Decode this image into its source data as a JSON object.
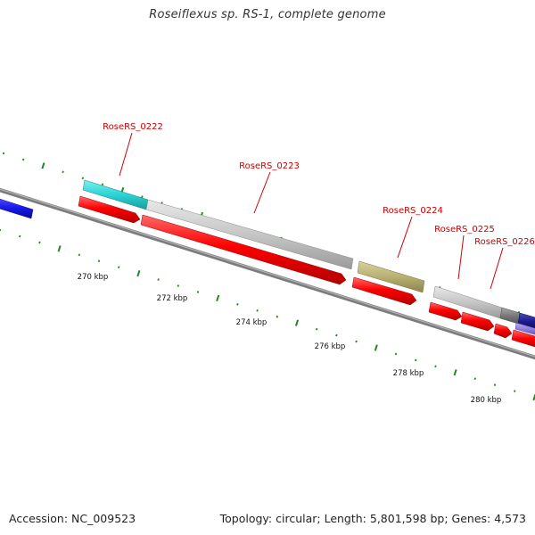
{
  "title": "Roseiflexus sp. RS-1, complete genome",
  "footer": {
    "accession": "Accession: NC_009523",
    "summary": "Topology: circular; Length: 5,801,598 bp; Genes: 4,573"
  },
  "colors": {
    "backbone": "#8c8c8c",
    "tick": "#1f8a1f",
    "gene_label": "#cc0000",
    "cds": "#ff0000",
    "gene_cyan": "#2ad4d4",
    "gene_gray": "#c6c6c6",
    "gene_olive": "#b8b070",
    "gene_blue": "#1a1aee",
    "gene_dark_gray": "#7a7a7a",
    "gene_navy": "#1a1a8c",
    "gene_purple": "#8a78d8"
  },
  "axis": {
    "unit": "kbp",
    "tick_labels": [
      "270 kbp",
      "272 kbp",
      "274 kbp",
      "276 kbp",
      "278 kbp",
      "280 kbp"
    ]
  },
  "genes": [
    {
      "name": "RoseRS_0222"
    },
    {
      "name": "RoseRS_0223"
    },
    {
      "name": "RoseRS_0224"
    },
    {
      "name": "RoseRS_0225"
    },
    {
      "name": "RoseRS_0226"
    }
  ]
}
